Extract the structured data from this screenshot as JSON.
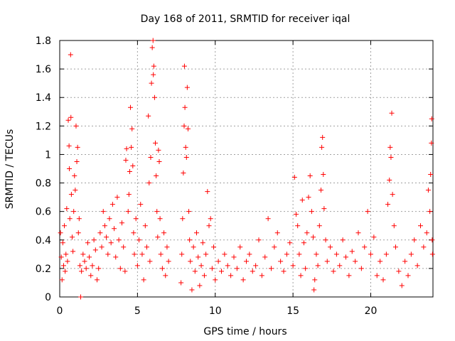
{
  "chart_data": {
    "type": "scatter",
    "title": "Day 168 of 2011, SRMTID for receiver iqal",
    "xlabel": "GPS time / hours",
    "ylabel": "SRMTID / TECUs",
    "xlim": [
      0,
      24
    ],
    "ylim": [
      0,
      1.8
    ],
    "xticks": [
      0,
      5,
      10,
      15,
      20
    ],
    "xtick_labels": [
      "0",
      "5",
      "10",
      "15",
      "20"
    ],
    "yticks": [
      0,
      0.2,
      0.4,
      0.6,
      0.8,
      1.0,
      1.2,
      1.4,
      1.6,
      1.8
    ],
    "ytick_labels": [
      "0",
      "0.2",
      "0.4",
      "0.6",
      "0.8",
      "1",
      "1.2",
      "1.4",
      "1.6",
      "1.8"
    ],
    "grid": true,
    "marker": "+",
    "color": "#ff0000",
    "series": [
      {
        "name": "SRMTID",
        "points": [
          [
            0.05,
            0.45
          ],
          [
            0.1,
            0.28
          ],
          [
            0.15,
            0.12
          ],
          [
            0.2,
            0.38
          ],
          [
            0.25,
            0.22
          ],
          [
            0.3,
            0.5
          ],
          [
            0.35,
            0.18
          ],
          [
            0.4,
            0.3
          ],
          [
            0.45,
            0.62
          ],
          [
            0.5,
            0.25
          ],
          [
            0.55,
            1.24
          ],
          [
            0.6,
            1.06
          ],
          [
            0.62,
            0.9
          ],
          [
            0.65,
            0.55
          ],
          [
            0.7,
            1.7
          ],
          [
            0.72,
            1.26
          ],
          [
            0.75,
            0.72
          ],
          [
            0.8,
            0.42
          ],
          [
            0.85,
            0.32
          ],
          [
            0.9,
            0.6
          ],
          [
            0.95,
            0.85
          ],
          [
            1.0,
            0.75
          ],
          [
            1.05,
            1.2
          ],
          [
            1.1,
            0.95
          ],
          [
            1.15,
            1.05
          ],
          [
            1.2,
            0.45
          ],
          [
            1.25,
            0.55
          ],
          [
            1.3,
            0.22
          ],
          [
            1.35,
            0.0
          ],
          [
            1.4,
            0.18
          ],
          [
            1.5,
            0.3
          ],
          [
            1.6,
            0.25
          ],
          [
            1.7,
            0.2
          ],
          [
            1.8,
            0.38
          ],
          [
            1.9,
            0.28
          ],
          [
            2.0,
            0.15
          ],
          [
            2.1,
            0.22
          ],
          [
            2.2,
            0.4
          ],
          [
            2.3,
            0.33
          ],
          [
            2.4,
            0.12
          ],
          [
            2.5,
            0.2
          ],
          [
            2.6,
            0.45
          ],
          [
            2.7,
            0.35
          ],
          [
            2.8,
            0.6
          ],
          [
            2.9,
            0.5
          ],
          [
            3.0,
            0.42
          ],
          [
            3.1,
            0.3
          ],
          [
            3.2,
            0.55
          ],
          [
            3.3,
            0.38
          ],
          [
            3.4,
            0.65
          ],
          [
            3.5,
            0.48
          ],
          [
            3.6,
            0.28
          ],
          [
            3.7,
            0.7
          ],
          [
            3.8,
            0.4
          ],
          [
            3.9,
            0.2
          ],
          [
            4.0,
            0.52
          ],
          [
            4.1,
            0.35
          ],
          [
            4.2,
            0.18
          ],
          [
            4.25,
            0.96
          ],
          [
            4.3,
            1.04
          ],
          [
            4.4,
            0.6
          ],
          [
            4.45,
            0.72
          ],
          [
            4.5,
            0.88
          ],
          [
            4.55,
            1.33
          ],
          [
            4.6,
            1.05
          ],
          [
            4.65,
            1.18
          ],
          [
            4.7,
            0.92
          ],
          [
            4.75,
            0.45
          ],
          [
            4.8,
            0.3
          ],
          [
            4.9,
            0.55
          ],
          [
            5.0,
            0.22
          ],
          [
            5.1,
            0.4
          ],
          [
            5.2,
            0.65
          ],
          [
            5.3,
            0.3
          ],
          [
            5.4,
            0.12
          ],
          [
            5.5,
            0.5
          ],
          [
            5.6,
            0.35
          ],
          [
            5.7,
            1.27
          ],
          [
            5.75,
            0.8
          ],
          [
            5.8,
            0.25
          ],
          [
            5.85,
            0.98
          ],
          [
            5.9,
            1.5
          ],
          [
            5.95,
            1.75
          ],
          [
            6.0,
            1.8
          ],
          [
            6.02,
            1.56
          ],
          [
            6.05,
            1.62
          ],
          [
            6.1,
            1.4
          ],
          [
            6.15,
            1.08
          ],
          [
            6.2,
            0.85
          ],
          [
            6.25,
            0.6
          ],
          [
            6.3,
            0.42
          ],
          [
            6.35,
            1.03
          ],
          [
            6.4,
            0.95
          ],
          [
            6.45,
            0.55
          ],
          [
            6.5,
            0.3
          ],
          [
            6.6,
            0.2
          ],
          [
            6.7,
            0.45
          ],
          [
            6.8,
            0.15
          ],
          [
            6.9,
            0.35
          ],
          [
            7.0,
            0.25
          ],
          [
            7.8,
            0.1
          ],
          [
            7.85,
            0.3
          ],
          [
            7.9,
            0.55
          ],
          [
            7.95,
            0.87
          ],
          [
            8.0,
            1.2
          ],
          [
            8.02,
            1.62
          ],
          [
            8.05,
            1.33
          ],
          [
            8.1,
            1.05
          ],
          [
            8.15,
            0.98
          ],
          [
            8.2,
            1.47
          ],
          [
            8.25,
            1.18
          ],
          [
            8.3,
            0.6
          ],
          [
            8.35,
            0.4
          ],
          [
            8.4,
            0.25
          ],
          [
            8.5,
            0.05
          ],
          [
            8.6,
            0.35
          ],
          [
            8.7,
            0.18
          ],
          [
            8.8,
            0.45
          ],
          [
            8.9,
            0.28
          ],
          [
            9.0,
            0.08
          ],
          [
            9.1,
            0.22
          ],
          [
            9.2,
            0.38
          ],
          [
            9.3,
            0.15
          ],
          [
            9.4,
            0.3
          ],
          [
            9.5,
            0.74
          ],
          [
            9.6,
            0.5
          ],
          [
            9.7,
            0.55
          ],
          [
            9.8,
            0.2
          ],
          [
            9.9,
            0.35
          ],
          [
            10.0,
            0.12
          ],
          [
            10.2,
            0.25
          ],
          [
            10.4,
            0.18
          ],
          [
            10.6,
            0.3
          ],
          [
            10.8,
            0.22
          ],
          [
            11.0,
            0.15
          ],
          [
            11.2,
            0.28
          ],
          [
            11.4,
            0.2
          ],
          [
            11.6,
            0.35
          ],
          [
            11.8,
            0.12
          ],
          [
            12.0,
            0.25
          ],
          [
            12.2,
            0.3
          ],
          [
            12.4,
            0.18
          ],
          [
            12.6,
            0.22
          ],
          [
            12.8,
            0.4
          ],
          [
            13.0,
            0.15
          ],
          [
            13.2,
            0.28
          ],
          [
            13.4,
            0.55
          ],
          [
            13.6,
            0.2
          ],
          [
            13.8,
            0.35
          ],
          [
            14.0,
            0.45
          ],
          [
            14.2,
            0.25
          ],
          [
            14.4,
            0.18
          ],
          [
            14.6,
            0.3
          ],
          [
            14.8,
            0.38
          ],
          [
            15.0,
            0.22
          ],
          [
            15.1,
            0.84
          ],
          [
            15.2,
            0.58
          ],
          [
            15.3,
            0.5
          ],
          [
            15.4,
            0.3
          ],
          [
            15.5,
            0.15
          ],
          [
            15.6,
            0.68
          ],
          [
            15.7,
            0.38
          ],
          [
            15.8,
            0.2
          ],
          [
            15.9,
            0.45
          ],
          [
            16.0,
            0.7
          ],
          [
            16.1,
            0.85
          ],
          [
            16.2,
            0.6
          ],
          [
            16.3,
            0.42
          ],
          [
            16.35,
            0.05
          ],
          [
            16.4,
            0.12
          ],
          [
            16.5,
            0.3
          ],
          [
            16.6,
            0.22
          ],
          [
            16.7,
            0.5
          ],
          [
            16.8,
            0.75
          ],
          [
            16.85,
            1.05
          ],
          [
            16.9,
            1.12
          ],
          [
            16.95,
            0.86
          ],
          [
            17.0,
            0.62
          ],
          [
            17.1,
            0.4
          ],
          [
            17.2,
            0.25
          ],
          [
            17.4,
            0.35
          ],
          [
            17.6,
            0.18
          ],
          [
            17.8,
            0.3
          ],
          [
            18.0,
            0.22
          ],
          [
            18.2,
            0.4
          ],
          [
            18.4,
            0.28
          ],
          [
            18.6,
            0.15
          ],
          [
            18.8,
            0.32
          ],
          [
            19.0,
            0.25
          ],
          [
            19.2,
            0.45
          ],
          [
            19.4,
            0.2
          ],
          [
            19.6,
            0.35
          ],
          [
            19.8,
            0.6
          ],
          [
            20.0,
            0.3
          ],
          [
            20.2,
            0.42
          ],
          [
            20.4,
            0.15
          ],
          [
            20.6,
            0.25
          ],
          [
            20.8,
            0.12
          ],
          [
            21.0,
            0.3
          ],
          [
            21.1,
            0.65
          ],
          [
            21.2,
            0.82
          ],
          [
            21.25,
            1.05
          ],
          [
            21.3,
            0.98
          ],
          [
            21.35,
            1.29
          ],
          [
            21.4,
            0.72
          ],
          [
            21.5,
            0.5
          ],
          [
            21.6,
            0.35
          ],
          [
            21.8,
            0.18
          ],
          [
            22.0,
            0.08
          ],
          [
            22.2,
            0.25
          ],
          [
            22.4,
            0.15
          ],
          [
            22.6,
            0.3
          ],
          [
            22.8,
            0.4
          ],
          [
            23.0,
            0.22
          ],
          [
            23.2,
            0.5
          ],
          [
            23.4,
            0.35
          ],
          [
            23.6,
            0.45
          ],
          [
            23.7,
            0.75
          ],
          [
            23.8,
            0.6
          ],
          [
            23.85,
            0.86
          ],
          [
            23.9,
            1.08
          ],
          [
            23.92,
            1.25
          ],
          [
            23.95,
            0.4
          ],
          [
            23.97,
            0.3
          ]
        ]
      }
    ]
  }
}
